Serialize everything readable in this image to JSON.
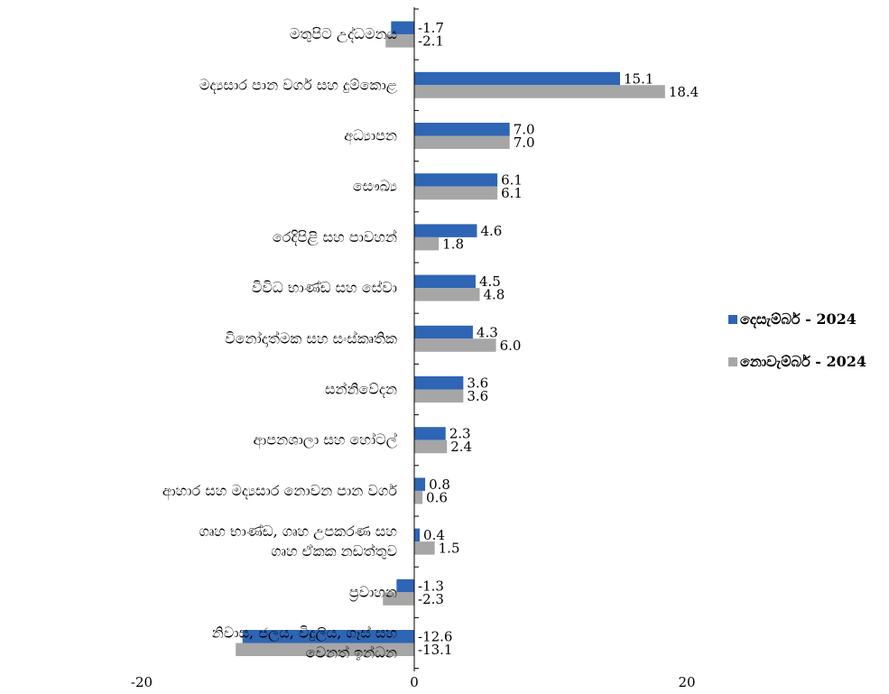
{
  "chart_data": {
    "type": "bar",
    "orientation": "horizontal",
    "categories": [
      [
        "මතුපිට උද්ධමනය"
      ],
      [
        "මද්‍යසාර පාන වර්ග සහ දුම්කොළ"
      ],
      [
        "අධ්‍යාපන"
      ],
      [
        "සෞඛ්‍ය"
      ],
      [
        "රෙදිපිළි සහ පාවහන්"
      ],
      [
        "විවිධ භාණ්ඩ සහ සේවා"
      ],
      [
        "විනෝදාත්මක සහ සංස්කෘතික"
      ],
      [
        "සන්නිවේදන"
      ],
      [
        "ආපනශාලා සහ හෝටල්"
      ],
      [
        "ආහාර සහ මද්‍යසාර නොවන පාන වර්ග"
      ],
      [
        "ගෘහ භාණ්ඩ, ගෘහ උපකරණ සහ",
        "ගෘහ ඒකක නඩත්තුව"
      ],
      [
        "ප්‍රවාහන"
      ],
      [
        "නිවාස, ජලය, විදුලිය, ගෑස් සහ",
        "වෙනත් ඉන්ධන"
      ]
    ],
    "series": [
      {
        "name": "දෙසැම්බර් - 2024",
        "color": "#2e65b4",
        "values": [
          -1.7,
          15.1,
          7.0,
          6.1,
          4.6,
          4.5,
          4.3,
          3.6,
          2.3,
          0.8,
          0.4,
          -1.3,
          -12.6
        ],
        "labels": [
          "-1.7",
          "15.1",
          "7.0",
          "6.1",
          "4.6",
          "4.5",
          "4.3",
          "3.6",
          "2.3",
          "0.8",
          "0.4",
          "-1.3",
          "-12.6"
        ]
      },
      {
        "name": "නොවැම්බර් - 2024",
        "color": "#a6a6a6",
        "values": [
          -2.1,
          18.4,
          7.0,
          6.1,
          1.8,
          4.8,
          6.0,
          3.6,
          2.4,
          0.6,
          1.5,
          -2.3,
          -13.1
        ],
        "labels": [
          "-2.1",
          "18.4",
          "7.0",
          "6.1",
          "1.8",
          "4.8",
          "6.0",
          "3.6",
          "2.4",
          "0.6",
          "1.5",
          "-2.3",
          "-13.1"
        ]
      }
    ],
    "xlim": [
      -20,
      20
    ],
    "xticks": [
      -20,
      0,
      20
    ],
    "xtick_labels": [
      "-20",
      "0",
      "20"
    ],
    "grid": false,
    "legend_position": "right"
  }
}
